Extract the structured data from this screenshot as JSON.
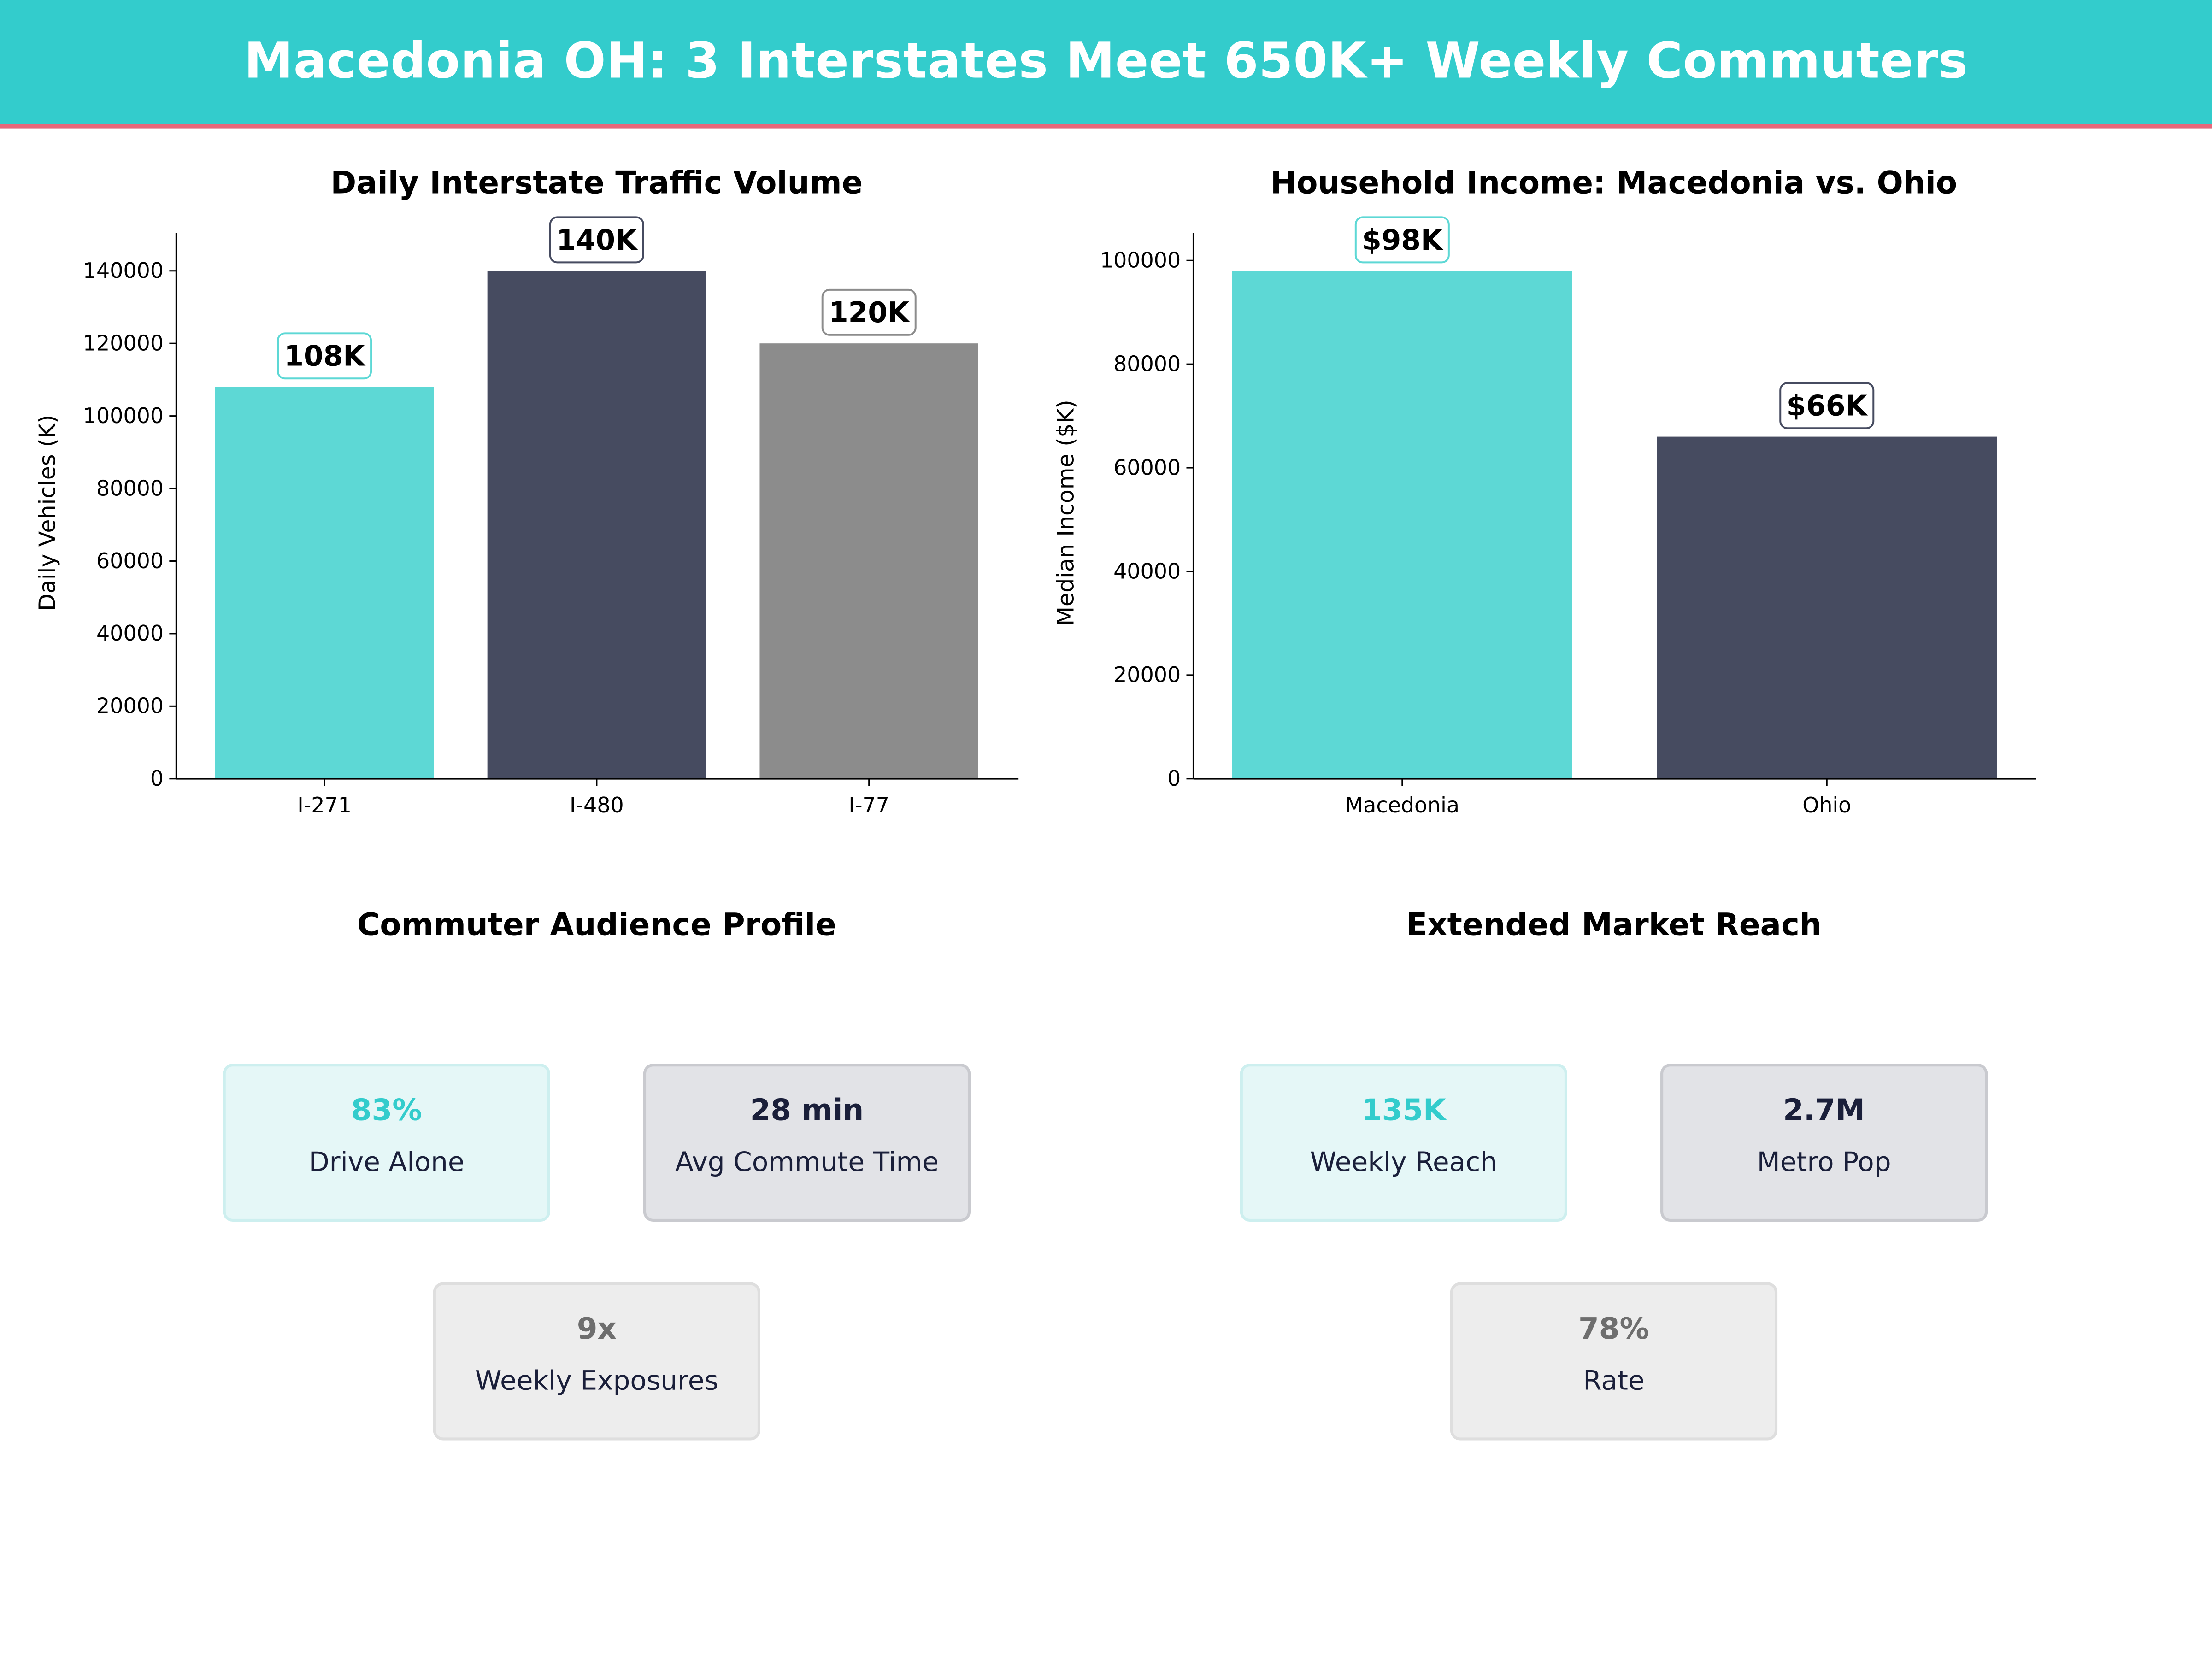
{
  "header": {
    "title": "Macedonia OH: 3 Interstates Meet 650K+ Weekly Commuters"
  },
  "colors": {
    "teal": "#5DD8D5",
    "dark": "#464B60",
    "gray": "#8C8C8C",
    "header": "#33CCCC",
    "accent_line": "#E8677A"
  },
  "chart_data": [
    {
      "type": "bar",
      "title": "Daily Interstate Traffic Volume",
      "xlabel": "",
      "ylabel": "Daily Vehicles (K)",
      "categories": [
        "I-271",
        "I-480",
        "I-77"
      ],
      "values": [
        108000,
        140000,
        120000
      ],
      "data_labels": [
        "108K",
        "140K",
        "120K"
      ],
      "bar_colors": [
        "#5DD8D5",
        "#464B60",
        "#8C8C8C"
      ],
      "yticks": [
        0,
        20000,
        40000,
        60000,
        80000,
        100000,
        120000,
        140000
      ],
      "ylim": [
        0,
        150500
      ],
      "grid": false
    },
    {
      "type": "bar",
      "title": "Household Income: Macedonia vs. Ohio",
      "xlabel": "",
      "ylabel": "Median Income ($K)",
      "categories": [
        "Macedonia",
        "Ohio"
      ],
      "values": [
        98000,
        66000
      ],
      "data_labels": [
        "$98K",
        "$66K"
      ],
      "bar_colors": [
        "#5DD8D5",
        "#464B60"
      ],
      "yticks": [
        0,
        20000,
        40000,
        60000,
        80000,
        100000
      ],
      "ylim": [
        0,
        105350
      ],
      "grid": false
    }
  ],
  "profile": {
    "title": "Commuter Audience Profile",
    "cards": [
      {
        "value": "83%",
        "label": "Drive Alone"
      },
      {
        "value": "28 min",
        "label": "Avg Commute Time"
      },
      {
        "value": "9x",
        "label": "Weekly Exposures"
      }
    ]
  },
  "reach": {
    "title": "Extended Market Reach",
    "cards": [
      {
        "value": "135K",
        "label": "Weekly Reach"
      },
      {
        "value": "2.7M",
        "label": "Metro Pop"
      },
      {
        "value": "78%",
        "label": "Rate"
      }
    ]
  }
}
